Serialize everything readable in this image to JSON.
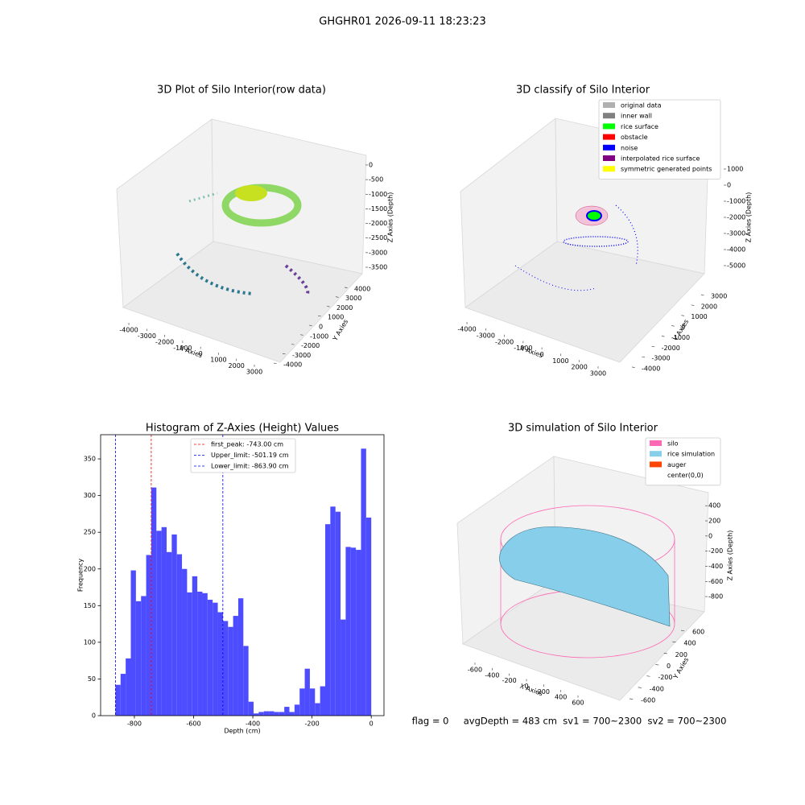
{
  "title": "GHGHR01 2026-09-11 18:23:23",
  "footer": "flag = 0     avgDepth = 483 cm  sv1 = 700~2300  sv2 = 700~2300",
  "chart_data": [
    {
      "type": "scatter3d",
      "title": "3D Plot of Silo Interior(row data)",
      "xlabel": "X Axies",
      "ylabel": "Y Axies",
      "zlabel": "Z Axies (Depth)",
      "xlim": [
        -4500,
        3700
      ],
      "xticks": [
        -4000,
        -3000,
        -2000,
        -1000,
        0,
        1000,
        2000,
        3000
      ],
      "ylim": [
        -4500,
        4500
      ],
      "yticks": [
        -4000,
        -3000,
        -2000,
        -1000,
        0,
        1000,
        2000,
        3000,
        4000
      ],
      "zlim": [
        -3800,
        200
      ],
      "zticks": [
        0,
        -500,
        -1000,
        -1500,
        -2000,
        -2500,
        -3000,
        -3500
      ]
    },
    {
      "type": "scatter3d",
      "title": "3D classify of Silo Interior",
      "xlabel": "X Axies",
      "ylabel": "Y Axies",
      "zlabel": "Z Axies (Depth)",
      "xlim": [
        -4500,
        3500
      ],
      "xticks": [
        -4000,
        -3000,
        -2000,
        -1000,
        0,
        1000,
        2000,
        3000
      ],
      "ylim": [
        -4500,
        3500
      ],
      "yticks": [
        -4000,
        -3000,
        -2000,
        -1000,
        0,
        1000,
        2000,
        3000
      ],
      "zlim": [
        -5500,
        1500
      ],
      "zticks": [
        1000,
        0,
        -1000,
        -2000,
        -3000,
        -4000,
        -5000
      ],
      "series": [
        {
          "name": "original data",
          "color": "#b0b0b0"
        },
        {
          "name": "inner wall",
          "color": "#808080"
        },
        {
          "name": "rice surface",
          "color": "#00ff00"
        },
        {
          "name": "obstacle",
          "color": "#ff0000"
        },
        {
          "name": "noise",
          "color": "#0000ff"
        },
        {
          "name": "interpolated rice surface",
          "color": "#800080"
        },
        {
          "name": "symmetric generated points",
          "color": "#ffff00"
        }
      ]
    },
    {
      "type": "histogram",
      "title": "Histogram of Z-Axies (Height) Values",
      "xlabel": "Depth (cm)",
      "ylabel": "Frequency",
      "color": "#4d4dff",
      "bins": [
        -863.9,
        -846.62,
        -829.34,
        -812.07,
        -794.79,
        -777.51,
        -760.23,
        -742.95,
        -725.68,
        -708.4,
        -691.12,
        -673.84,
        -656.56,
        -639.29,
        -622.01,
        -604.73,
        -587.45,
        -570.17,
        -552.9,
        -535.62,
        -518.34,
        -501.06,
        -483.78,
        -466.51,
        -449.23,
        -431.95,
        -414.67,
        -397.39,
        -380.12,
        -362.84,
        -345.56,
        -328.28,
        -311,
        -293.73,
        -276.45,
        -259.17,
        -241.89,
        -224.61,
        -207.34,
        -190.06,
        -172.78,
        -155.5,
        -138.22,
        -120.95,
        -103.67,
        -86.39,
        -69.11,
        -51.83,
        -34.56,
        -17.28,
        0
      ],
      "values": [
        42,
        57,
        78,
        198,
        156,
        163,
        219,
        311,
        252,
        257,
        223,
        247,
        220,
        200,
        168,
        190,
        169,
        167,
        158,
        154,
        141,
        129,
        121,
        136,
        160,
        95,
        19,
        3,
        5,
        6,
        6,
        5,
        5,
        12,
        5,
        15,
        37,
        64,
        37,
        17,
        40,
        261,
        285,
        278,
        131,
        230,
        229,
        226,
        364,
        270
      ],
      "xlim": [
        -914,
        43
      ],
      "xticks": [
        -800,
        -600,
        -400,
        -200,
        0
      ],
      "ylim": [
        0,
        383
      ],
      "yticks": [
        0,
        50,
        100,
        150,
        200,
        250,
        300,
        350
      ],
      "lines": [
        {
          "label": "first_peak: -743.00 cm",
          "value": -743,
          "color": "#ff0000"
        },
        {
          "label": "Upper_limit: -501.19 cm",
          "value": -501.19,
          "color": "#0000ff"
        },
        {
          "label": "Lower_limit: -863.90 cm",
          "value": -863.9,
          "color": "#0000ff"
        }
      ]
    },
    {
      "type": "surface3d",
      "title": "3D simulation of Silo Interior",
      "xlabel": "X Axies",
      "ylabel": "Y Axies",
      "zlabel": "Z Axies (Depth)",
      "xlim": [
        -750,
        750
      ],
      "xticks": [
        -600,
        -400,
        -200,
        0,
        200,
        400,
        600
      ],
      "ylim": [
        -750,
        750
      ],
      "yticks": [
        -600,
        -400,
        -200,
        0,
        200,
        400,
        600
      ],
      "zlim": [
        -950,
        500
      ],
      "zticks": [
        400,
        200,
        0,
        -200,
        -400,
        -600,
        -800
      ],
      "series": [
        {
          "name": "silo",
          "color": "#ff69b4"
        },
        {
          "name": "rice simulation",
          "color": "#87ceeb"
        },
        {
          "name": "auger",
          "color": "#ff4500"
        },
        {
          "name": "center(0,0)",
          "color": "#ffffff"
        }
      ]
    }
  ]
}
